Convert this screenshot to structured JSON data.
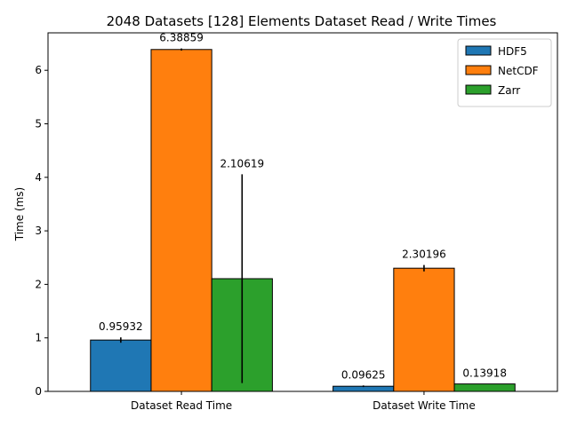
{
  "chart_data": {
    "type": "bar",
    "title": "2048 Datasets [128] Elements Dataset Read / Write Times",
    "xlabel": "",
    "ylabel": "Time (ms)",
    "ylim": [
      0,
      6.7
    ],
    "yticks": [
      0,
      1,
      2,
      3,
      4,
      5,
      6
    ],
    "categories": [
      "Dataset Read Time",
      "Dataset Write Time"
    ],
    "legend_position": "top-right",
    "grid": false,
    "series": [
      {
        "name": "HDF5",
        "color": "#1f77b4",
        "values": [
          0.95932,
          0.09625
        ],
        "labels": [
          "0.95932",
          "0.09625"
        ],
        "errors": [
          0.05,
          0.015
        ]
      },
      {
        "name": "NetCDF",
        "color": "#ff7f0e",
        "values": [
          6.38859,
          2.30196
        ],
        "labels": [
          "6.38859",
          "2.30196"
        ],
        "errors": [
          0.02,
          0.06
        ]
      },
      {
        "name": "Zarr",
        "color": "#2ca02c",
        "values": [
          2.10619,
          0.13918
        ],
        "labels": [
          "2.10619",
          "0.13918"
        ],
        "errors": [
          1.95,
          0.0
        ]
      }
    ]
  }
}
